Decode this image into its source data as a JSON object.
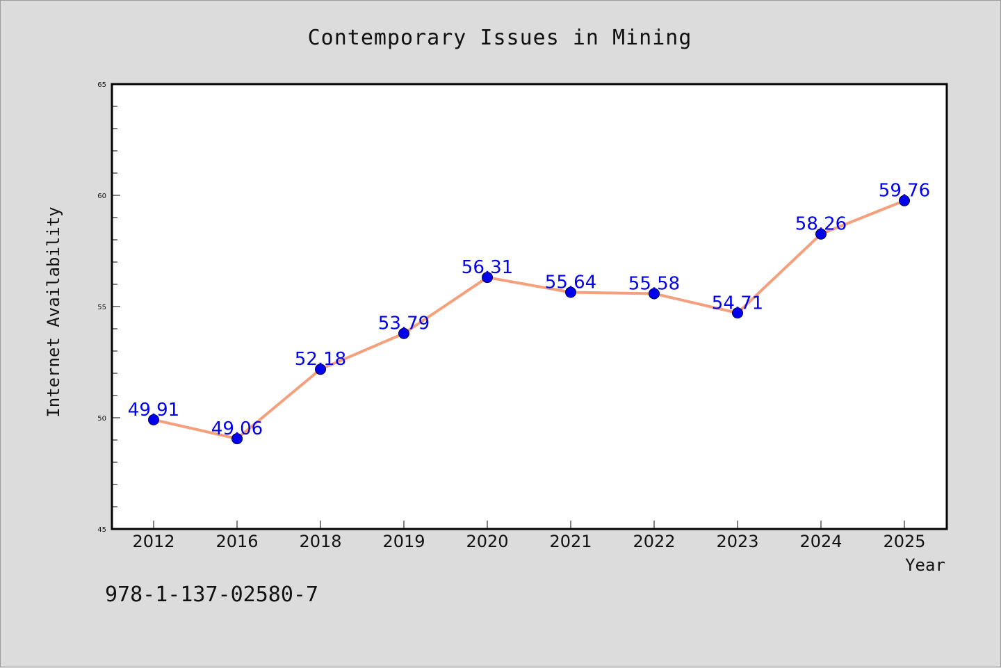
{
  "chart_data": {
    "type": "line",
    "title": "Contemporary Issues in Mining",
    "xlabel": "Year",
    "ylabel": "Internet Availability",
    "categories": [
      "2012",
      "2016",
      "2018",
      "2019",
      "2020",
      "2021",
      "2022",
      "2023",
      "2024",
      "2025"
    ],
    "series": [
      {
        "values": [
          49.91,
          49.06,
          52.18,
          53.79,
          56.31,
          55.64,
          55.58,
          54.71,
          58.26,
          59.76
        ],
        "labels": [
          "49.91",
          "49.06",
          "52.18",
          "53.79",
          "56.31",
          "55.64",
          "55.58",
          "54.71",
          "58.26",
          "59.76"
        ],
        "line_color": "#f4a07c",
        "marker_color": "#0000ee"
      }
    ],
    "ylim": [
      45,
      65
    ],
    "yticks": [
      "45",
      "50",
      "55",
      "60",
      "65"
    ],
    "grid": false,
    "legend": "none"
  },
  "footer": {
    "isbn": "978-1-137-02580-7"
  },
  "colors": {
    "background": "#dcdcdc",
    "plot_background": "#ffffff",
    "axis": "#000000"
  }
}
